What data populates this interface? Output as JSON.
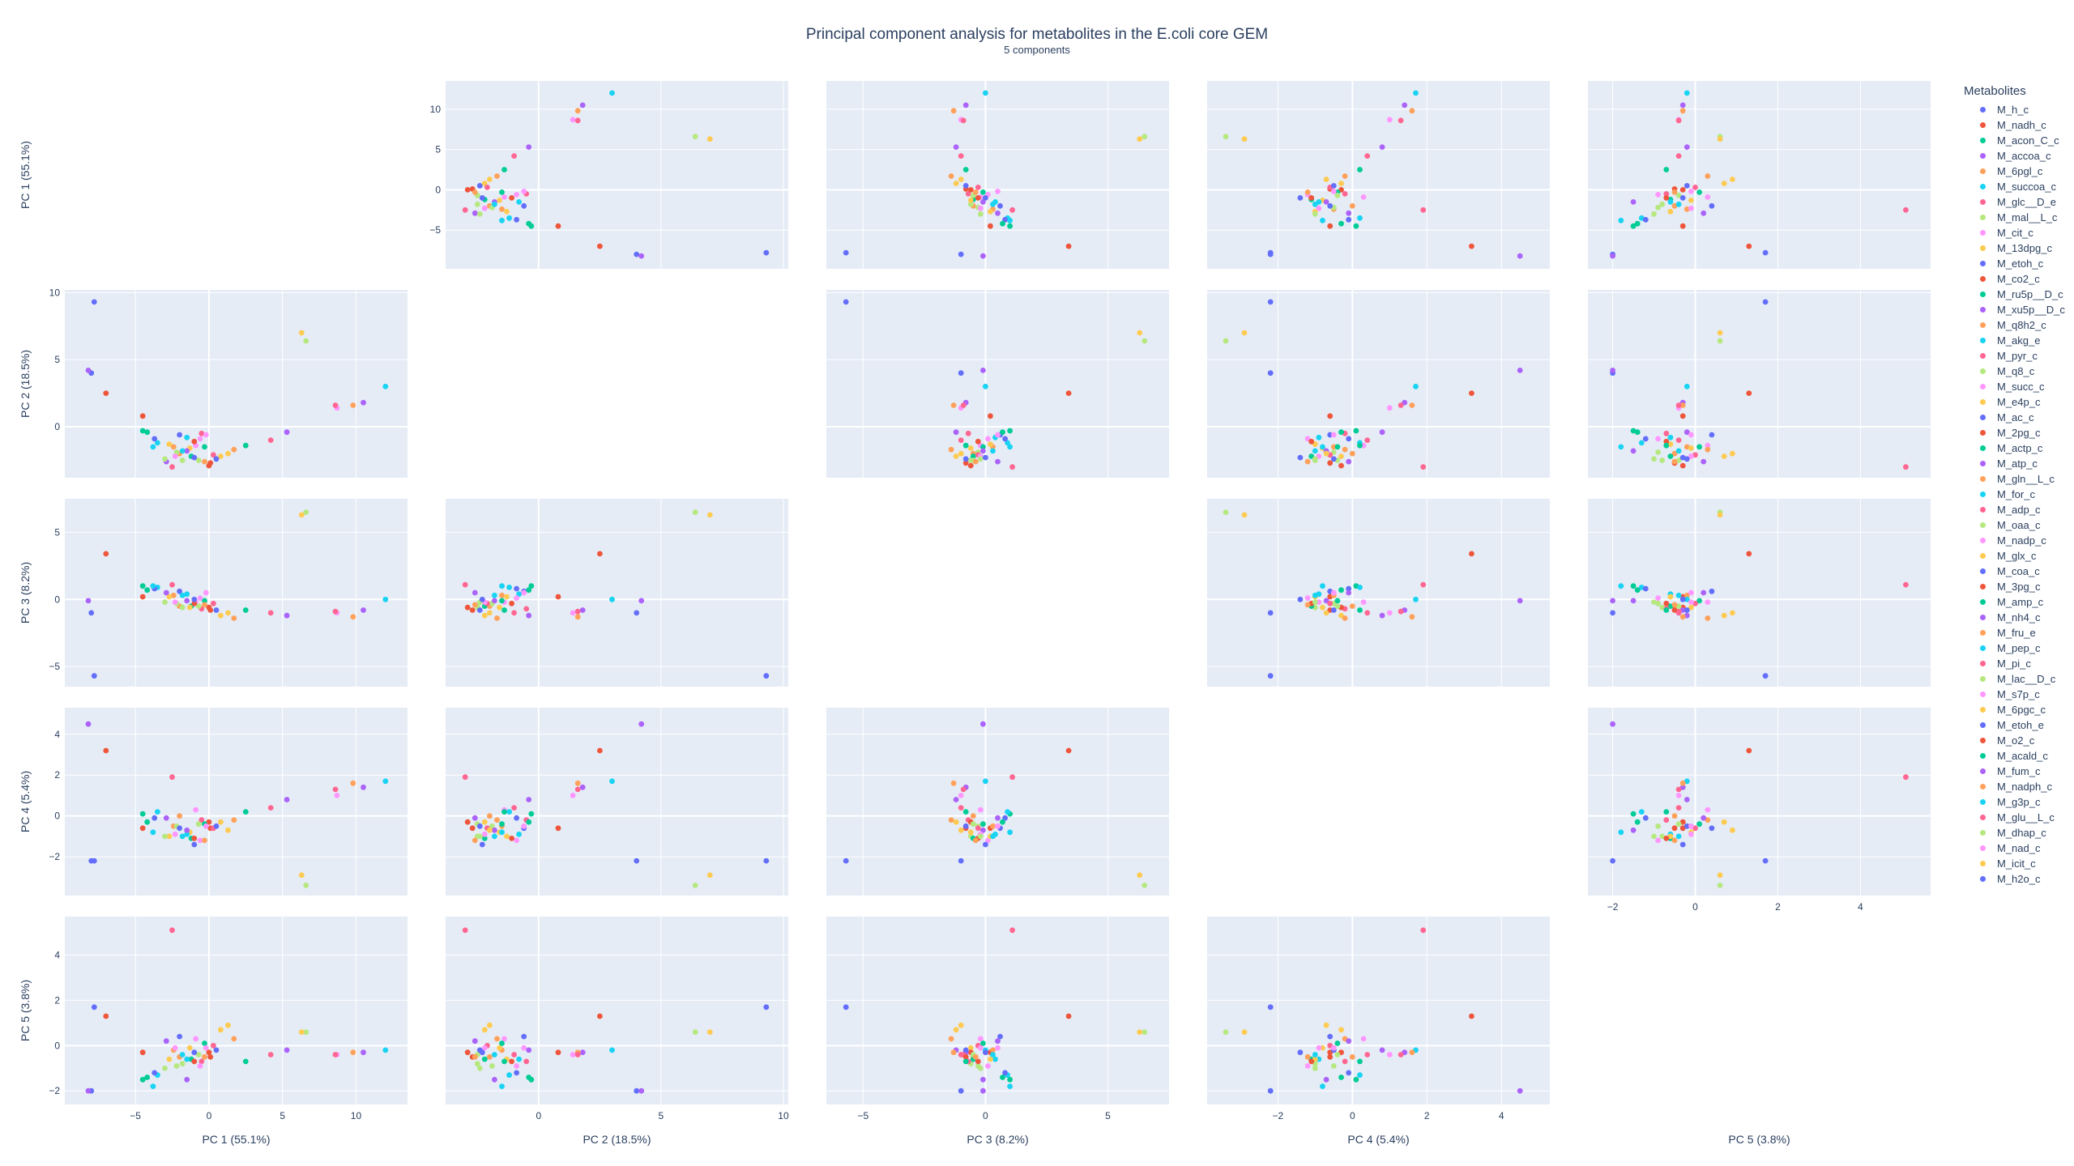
{
  "chart_data": {
    "type": "scatter",
    "kind": "scatter-matrix",
    "title": "Principal component analysis for metabolites in the E.coli core GEM",
    "subtitle": "5 components",
    "dimensions": [
      "PC 1 (55.1%)",
      "PC 2 (18.5%)",
      "PC 3 (8.2%)",
      "PC 4 (5.4%)",
      "PC 5 (3.8%)"
    ],
    "ranges": [
      [
        -9.8,
        13.5
      ],
      [
        -3.8,
        10.2
      ],
      [
        -6.5,
        7.5
      ],
      [
        -3.9,
        5.3
      ],
      [
        -2.6,
        5.7
      ]
    ],
    "ticks": [
      [
        -5,
        0,
        5,
        10
      ],
      [
        0,
        5,
        10
      ],
      [
        -5,
        0,
        5
      ],
      [
        -2,
        0,
        2,
        4
      ],
      [
        -2,
        0,
        2,
        4
      ]
    ],
    "diagonal_visible": false,
    "legend_title": "Metabolites",
    "legend_position": "right",
    "grid": true,
    "points": [
      {
        "name": "M_h_c",
        "color": "#636efa",
        "v": [
          -8.0,
          4.0,
          -1.0,
          -2.2,
          -2.0
        ]
      },
      {
        "name": "M_nadh_c",
        "color": "#EF553B",
        "v": [
          -7.0,
          2.5,
          3.4,
          3.2,
          1.3
        ]
      },
      {
        "name": "M_acon_C_c",
        "color": "#00cc96",
        "v": [
          -4.5,
          -0.3,
          1.0,
          0.1,
          -1.5
        ]
      },
      {
        "name": "M_accoa_c",
        "color": "#ab63fa",
        "v": [
          -8.2,
          4.2,
          -0.1,
          4.5,
          -2.0
        ]
      },
      {
        "name": "M_6pgl_c",
        "color": "#FFA15A",
        "v": [
          -2.0,
          -2.0,
          -0.5,
          0.0,
          -0.5
        ]
      },
      {
        "name": "M_succoa_c",
        "color": "#19d3f3",
        "v": [
          -3.5,
          -1.2,
          0.9,
          0.2,
          -1.3
        ]
      },
      {
        "name": "M_glc__D_e",
        "color": "#FF6692",
        "v": [
          -2.5,
          -3.0,
          1.1,
          1.9,
          5.1
        ]
      },
      {
        "name": "M_mal__L_c",
        "color": "#B6E880",
        "v": [
          -1.8,
          -2.5,
          -0.6,
          -1.0,
          -0.8
        ]
      },
      {
        "name": "M_cit_c",
        "color": "#FF97FF",
        "v": [
          -0.9,
          -1.4,
          -0.2,
          0.3,
          0.3
        ]
      },
      {
        "name": "M_13dpg_c",
        "color": "#FECB52",
        "v": [
          0.8,
          -2.2,
          -1.2,
          -0.3,
          0.7
        ]
      },
      {
        "name": "M_etoh_c",
        "color": "#636efa",
        "v": [
          -7.8,
          9.3,
          -5.7,
          -2.2,
          1.7
        ]
      },
      {
        "name": "M_co2_c",
        "color": "#EF553B",
        "v": [
          -4.5,
          0.8,
          0.2,
          -0.6,
          -0.3
        ]
      },
      {
        "name": "M_ru5p__D_c",
        "color": "#00cc96",
        "v": [
          -1.2,
          -2.2,
          -0.5,
          -1.1,
          -0.6
        ]
      },
      {
        "name": "M_xu5p__D_c",
        "color": "#ab63fa",
        "v": [
          5.3,
          -0.4,
          -1.2,
          0.8,
          -0.2
        ]
      },
      {
        "name": "M_q8h2_c",
        "color": "#FFA15A",
        "v": [
          -2.4,
          -1.5,
          0.3,
          -0.5,
          -0.2
        ]
      },
      {
        "name": "M_akg_e",
        "color": "#19d3f3",
        "v": [
          12.0,
          3.0,
          0.0,
          1.7,
          -0.2
        ]
      },
      {
        "name": "M_pyr_c",
        "color": "#FF6692",
        "v": [
          -0.5,
          -0.5,
          -0.7,
          -0.2,
          -0.7
        ]
      },
      {
        "name": "M_q8_c",
        "color": "#B6E880",
        "v": [
          -2.2,
          -1.9,
          -0.3,
          -0.5,
          -0.9
        ]
      },
      {
        "name": "M_succ_c",
        "color": "#FF97FF",
        "v": [
          8.7,
          1.4,
          -1.0,
          1.0,
          -0.4
        ]
      },
      {
        "name": "M_e4p_c",
        "color": "#FECB52",
        "v": [
          -1.3,
          -1.6,
          -0.6,
          -0.8,
          -0.1
        ]
      },
      {
        "name": "M_ac_c",
        "color": "#636efa",
        "v": [
          -2.0,
          -0.6,
          0.6,
          -0.6,
          0.4
        ]
      },
      {
        "name": "M_2pg_c",
        "color": "#EF553B",
        "v": [
          0.0,
          -2.9,
          -0.6,
          -0.3,
          -0.3
        ]
      },
      {
        "name": "M_actp_c",
        "color": "#00cc96",
        "v": [
          -0.3,
          -1.5,
          -0.1,
          -0.4,
          0.1
        ]
      },
      {
        "name": "M_atp_c",
        "color": "#ab63fa",
        "v": [
          10.5,
          1.8,
          -0.8,
          1.4,
          -0.3
        ]
      },
      {
        "name": "M_gln__L_c",
        "color": "#FFA15A",
        "v": [
          9.8,
          1.6,
          -1.3,
          1.6,
          -0.3
        ]
      },
      {
        "name": "M_for_c",
        "color": "#19d3f3",
        "v": [
          -1.5,
          -0.8,
          0.4,
          -0.9,
          -0.6
        ]
      },
      {
        "name": "M_adp_c",
        "color": "#FF6692",
        "v": [
          8.6,
          1.6,
          -0.9,
          1.3,
          -0.4
        ]
      },
      {
        "name": "M_oaa_c",
        "color": "#B6E880",
        "v": [
          6.6,
          6.4,
          6.5,
          -3.4,
          0.6
        ]
      },
      {
        "name": "M_nadp_c",
        "color": "#FF97FF",
        "v": [
          -0.6,
          -0.9,
          0.1,
          -1.2,
          -0.9
        ]
      },
      {
        "name": "M_glx_c",
        "color": "#FECB52",
        "v": [
          -2.7,
          -1.3,
          0.2,
          -1.0,
          -0.6
        ]
      },
      {
        "name": "M_coa_c",
        "color": "#636efa",
        "v": [
          -3.7,
          -0.9,
          0.8,
          -0.1,
          -1.2
        ]
      },
      {
        "name": "M_3pg_c",
        "color": "#EF553B",
        "v": [
          0.1,
          -2.7,
          -0.8,
          -0.6,
          -0.5
        ]
      },
      {
        "name": "M_amp_c",
        "color": "#00cc96",
        "v": [
          -4.2,
          -0.4,
          0.7,
          -0.3,
          -1.4
        ]
      },
      {
        "name": "M_nh4_c",
        "color": "#ab63fa",
        "v": [
          -1.5,
          -1.8,
          -0.1,
          -0.7,
          -1.5
        ]
      },
      {
        "name": "M_fru_e",
        "color": "#FFA15A",
        "v": [
          1.7,
          -1.7,
          -1.4,
          -0.2,
          0.3
        ]
      },
      {
        "name": "M_pep_c",
        "color": "#19d3f3",
        "v": [
          -3.8,
          -1.5,
          1.0,
          -0.8,
          -1.8
        ]
      },
      {
        "name": "M_pi_c",
        "color": "#FF6692",
        "v": [
          0.3,
          -2.1,
          -0.3,
          -0.6,
          0.0
        ]
      },
      {
        "name": "M_lac__D_c",
        "color": "#B6E880",
        "v": [
          -0.7,
          -2.5,
          -0.5,
          -0.4,
          -0.4
        ]
      },
      {
        "name": "M_s7p_c",
        "color": "#FF97FF",
        "v": [
          -2.3,
          -2.2,
          -0.2,
          -0.9,
          -0.1
        ]
      },
      {
        "name": "M_6pgc_c",
        "color": "#FECB52",
        "v": [
          1.3,
          -2.0,
          -1.0,
          -0.7,
          0.9
        ]
      },
      {
        "name": "M_etoh_e",
        "color": "#636efa",
        "v": [
          0.5,
          -2.4,
          -0.8,
          -0.5,
          -0.2
        ]
      },
      {
        "name": "M_o2_c",
        "color": "#EF553B",
        "v": [
          -1.0,
          -1.1,
          -0.3,
          -1.1,
          -0.7
        ]
      },
      {
        "name": "M_acald_c",
        "color": "#00cc96",
        "v": [
          2.5,
          -1.4,
          -0.8,
          0.2,
          -0.7
        ]
      },
      {
        "name": "M_fum_c",
        "color": "#ab63fa",
        "v": [
          -2.9,
          -2.6,
          0.5,
          -0.1,
          0.2
        ]
      },
      {
        "name": "M_nadph_c",
        "color": "#FFA15A",
        "v": [
          -0.3,
          -2.6,
          -0.4,
          -1.2,
          -0.5
        ]
      },
      {
        "name": "M_g3p_c",
        "color": "#19d3f3",
        "v": [
          -1.8,
          -1.8,
          0.3,
          -1.0,
          -0.4
        ]
      },
      {
        "name": "M_glu__L_c",
        "color": "#FF6692",
        "v": [
          4.2,
          -1.0,
          -1.0,
          0.4,
          -0.4
        ]
      },
      {
        "name": "M_dhap_c",
        "color": "#B6E880",
        "v": [
          -3.0,
          -2.4,
          -0.2,
          -1.0,
          -1.0
        ]
      },
      {
        "name": "M_nad_c",
        "color": "#FF97FF",
        "v": [
          -0.2,
          -0.6,
          0.5,
          -0.5,
          -0.1
        ]
      },
      {
        "name": "M_icit_c",
        "color": "#FECB52",
        "v": [
          6.3,
          7.0,
          6.3,
          -2.9,
          0.6
        ]
      },
      {
        "name": "M_h2o_c",
        "color": "#636efa",
        "v": [
          -1.0,
          -2.3,
          0.0,
          -1.4,
          -0.3
        ]
      }
    ]
  }
}
